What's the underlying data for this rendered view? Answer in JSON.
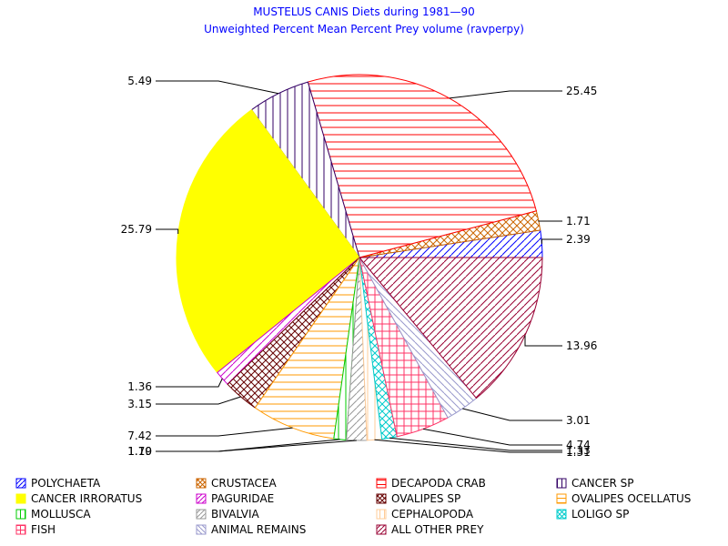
{
  "chart_data": {
    "type": "pie",
    "title": "MUSTELUS CANIS Diets during 1981—90",
    "subtitle": "Unweighted Percent Mean Percent Prey  volume (ravperpy)",
    "slices": [
      {
        "name": "POLYCHAETA",
        "value": 2.39,
        "label": "2.39",
        "color": "#0000ff",
        "pattern": "diag-up"
      },
      {
        "name": "CRUSTACEA",
        "value": 1.71,
        "label": "1.71",
        "color": "#cc6600",
        "pattern": "cross"
      },
      {
        "name": "DECAPODA CRAB",
        "value": 25.45,
        "label": "25.45",
        "color": "#ff0000",
        "pattern": "horizontal"
      },
      {
        "name": "CANCER SP",
        "value": 5.49,
        "label": "5.49",
        "color": "#330066",
        "pattern": "vertical"
      },
      {
        "name": "CANCER IRRORATUS",
        "value": 25.79,
        "label": "25.79",
        "color": "#ffff00",
        "pattern": "solid"
      },
      {
        "name": "PAGURIDAE",
        "value": 1.36,
        "label": "1.36",
        "color": "#cc00cc",
        "pattern": "diag-up"
      },
      {
        "name": "OVALIPES SP",
        "value": 3.15,
        "label": "3.15",
        "color": "#660000",
        "pattern": "cross"
      },
      {
        "name": "OVALIPES OCELLATUS",
        "value": 7.42,
        "label": "7.42",
        "color": "#ff9900",
        "pattern": "horizontal"
      },
      {
        "name": "MOLLUSCA",
        "value": 1.1,
        "label": "1.10",
        "color": "#00cc00",
        "pattern": "vertical"
      },
      {
        "name": "BIVALVIA",
        "value": 1.79,
        "label": "1.79",
        "color": "#999999",
        "pattern": "diag-up"
      },
      {
        "name": "CEPHALOPODA",
        "value": 1.31,
        "label": "1.31",
        "color": "#ffcc99",
        "pattern": "vertical"
      },
      {
        "name": "LOLIGO SP",
        "value": 1.33,
        "label": "1.33",
        "color": "#00cccc",
        "pattern": "cross"
      },
      {
        "name": "FISH",
        "value": 4.74,
        "label": "4.74",
        "color": "#ff3366",
        "pattern": "grid"
      },
      {
        "name": "ANIMAL REMAINS",
        "value": 3.01,
        "label": "3.01",
        "color": "#9999cc",
        "pattern": "diag-down"
      },
      {
        "name": "ALL OTHER PREY",
        "value": 13.96,
        "label": "13.96",
        "color": "#990033",
        "pattern": "diag-up"
      }
    ],
    "legend_position": "bottom",
    "legend_columns": 4
  }
}
